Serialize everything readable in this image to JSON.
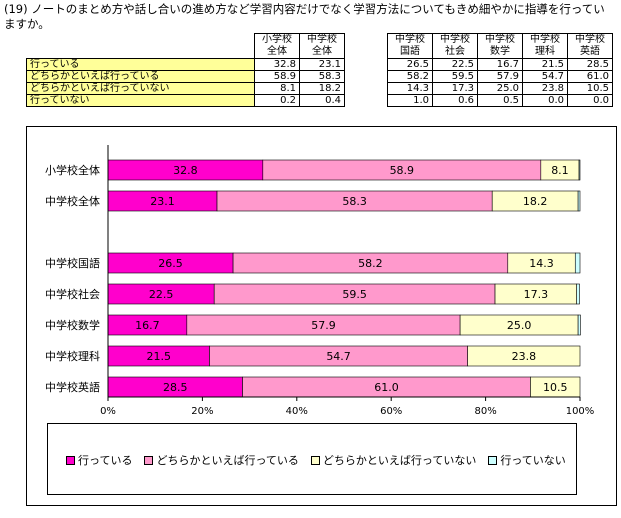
{
  "question": "(19) ノートのまとめ方や話し合いの進め方など学習内容だけでなく学習方法についてもきめ細やかに指導を行っていますか。",
  "table": {
    "columns": [
      {
        "line1": "小学校",
        "line2": "全体"
      },
      {
        "line1": "中学校",
        "line2": "全体"
      },
      {
        "line1": "中学校",
        "line2": "国語"
      },
      {
        "line1": "中学校",
        "line2": "社会"
      },
      {
        "line1": "中学校",
        "line2": "数学"
      },
      {
        "line1": "中学校",
        "line2": "理科"
      },
      {
        "line1": "中学校",
        "line2": "英語"
      }
    ],
    "rows": [
      {
        "label": "行っている",
        "values": [
          "32.8",
          "23.1",
          "26.5",
          "22.5",
          "16.7",
          "21.5",
          "28.5"
        ]
      },
      {
        "label": "どちらかといえば行っている",
        "values": [
          "58.9",
          "58.3",
          "58.2",
          "59.5",
          "57.9",
          "54.7",
          "61.0"
        ]
      },
      {
        "label": "どちらかといえば行っていない",
        "values": [
          "8.1",
          "18.2",
          "14.3",
          "17.3",
          "25.0",
          "23.8",
          "10.5"
        ]
      },
      {
        "label": "行っていない",
        "values": [
          "0.2",
          "0.4",
          "1.0",
          "0.6",
          "0.5",
          "0.0",
          "0.0"
        ]
      }
    ]
  },
  "chart_data": {
    "type": "bar",
    "orientation": "horizontal",
    "stacked": "percent",
    "categories": [
      "小学校全体",
      "中学校全体",
      "中学校国語",
      "中学校社会",
      "中学校数学",
      "中学校理科",
      "中学校英語"
    ],
    "series": [
      {
        "name": "行っている",
        "values": [
          32.8,
          23.1,
          26.5,
          22.5,
          16.7,
          21.5,
          28.5
        ],
        "color": "#ff00cc"
      },
      {
        "name": "どちらかといえば行っている",
        "values": [
          58.9,
          58.3,
          58.2,
          59.5,
          57.9,
          54.7,
          61.0
        ],
        "color": "#ff99cc"
      },
      {
        "name": "どちらかといえば行っていない",
        "values": [
          8.1,
          18.2,
          14.3,
          17.3,
          25.0,
          23.8,
          10.5
        ],
        "color": "#ffffcc"
      },
      {
        "name": "行っていない",
        "values": [
          0.2,
          0.4,
          1.0,
          0.6,
          0.5,
          0.0,
          0.0
        ],
        "color": "#ccffff"
      }
    ],
    "xticks": [
      "0%",
      "20%",
      "40%",
      "60%",
      "80%",
      "100%"
    ],
    "xlim": [
      0,
      100
    ],
    "legend_position": "bottom",
    "grid": false
  }
}
